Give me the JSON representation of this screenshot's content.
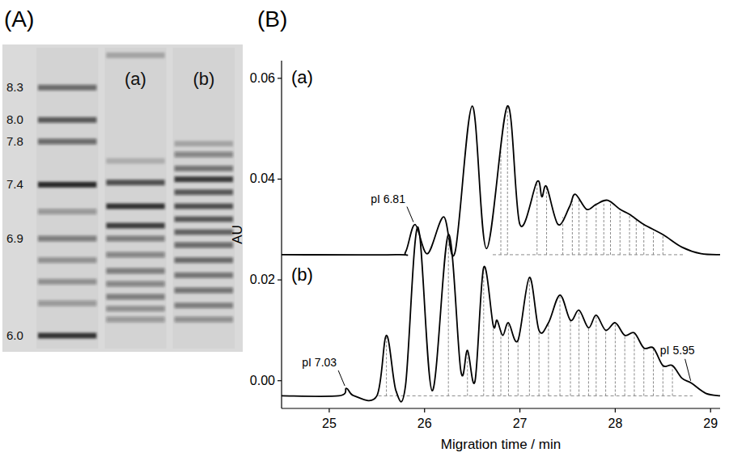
{
  "chart_data": [
    {
      "type": "gel",
      "label": "(A)",
      "ylim": [
        5.85,
        8.7
      ],
      "yticks": [
        8.3,
        {
          "value": 8,
          "label": "8.0"
        },
        7.8,
        7.4,
        6.9,
        {
          "value": 6,
          "label": "6.0"
        }
      ],
      "lanes": [
        {
          "bands": [
            8.3,
            8.0,
            7.8,
            7.4,
            7.15,
            6.9,
            6.7,
            6.5,
            6.3,
            6.0
          ],
          "intensity": [
            0.6,
            0.7,
            0.6,
            1.0,
            0.35,
            0.5,
            0.4,
            0.4,
            0.35,
            0.95
          ]
        },
        {
          "name": "(a)",
          "bands": [
            8.6,
            7.62,
            7.42,
            7.2,
            7.02,
            6.9,
            6.75,
            6.6,
            6.48,
            6.36,
            6.25,
            6.15
          ],
          "intensity": [
            0.25,
            0.2,
            0.75,
            0.95,
            0.85,
            0.5,
            0.45,
            0.5,
            0.45,
            0.5,
            0.4,
            0.35
          ]
        },
        {
          "name": "(b)",
          "bands": [
            7.78,
            7.68,
            7.55,
            7.45,
            7.33,
            7.2,
            7.08,
            6.96,
            6.84,
            6.7,
            6.56,
            6.42,
            6.28,
            6.15
          ],
          "intensity": [
            0.25,
            0.45,
            0.55,
            0.9,
            0.7,
            0.75,
            0.7,
            0.65,
            0.6,
            0.6,
            0.55,
            0.55,
            0.5,
            0.4
          ]
        }
      ]
    },
    {
      "type": "line",
      "label": "(B)",
      "x_label": "Migration time / min",
      "y_label": "AU",
      "xlim": [
        24.5,
        29.1
      ],
      "ylim": [
        -0.0055,
        0.0635
      ],
      "xticks": [
        25,
        26,
        27,
        28,
        29
      ],
      "yticks": [
        {
          "value": 0,
          "label": "0.00"
        },
        0.02,
        0.04,
        0.06
      ],
      "series": [
        {
          "name": "(a)",
          "color": "#000000",
          "line_style": "solid",
          "x": [
            24.5,
            25.7,
            25.8,
            25.9,
            26.03,
            26.2,
            26.32,
            26.5,
            26.65,
            26.87,
            27.0,
            27.18,
            27.23,
            27.28,
            27.4,
            27.52,
            27.58,
            27.7,
            27.8,
            27.92,
            28.05,
            28.15,
            28.3,
            28.5,
            28.7,
            28.9,
            29.1
          ],
          "values": [
            0.025,
            0.025,
            0.0255,
            0.031,
            0.0252,
            0.0325,
            0.0255,
            0.0545,
            0.0262,
            0.0545,
            0.031,
            0.0395,
            0.0365,
            0.0385,
            0.031,
            0.0345,
            0.037,
            0.034,
            0.035,
            0.0358,
            0.034,
            0.033,
            0.031,
            0.029,
            0.0265,
            0.0252,
            0.025
          ],
          "baseline": 0.025,
          "peaks": [
            26.8,
            26.87,
            27.18,
            27.28,
            27.45,
            27.55,
            27.62,
            27.7,
            27.8,
            27.88,
            27.95,
            28.05,
            28.15,
            28.22,
            28.3,
            28.4,
            28.5
          ]
        },
        {
          "name": "(b)",
          "color": "#000000",
          "line_style": "solid",
          "x": [
            24.5,
            25.1,
            25.18,
            25.26,
            25.5,
            25.6,
            25.7,
            25.8,
            25.93,
            26.08,
            26.25,
            26.38,
            26.45,
            26.53,
            26.62,
            26.72,
            26.76,
            26.82,
            26.88,
            26.98,
            27.1,
            27.2,
            27.3,
            27.42,
            27.53,
            27.62,
            27.72,
            27.8,
            27.9,
            28.0,
            28.1,
            28.2,
            28.3,
            28.4,
            28.5,
            28.6,
            28.7,
            28.8,
            28.95,
            29.1
          ],
          "values": [
            -0.003,
            -0.003,
            -0.0015,
            -0.003,
            -0.003,
            0.009,
            -0.002,
            -0.001,
            0.0305,
            -0.002,
            0.029,
            0.002,
            0.006,
            0,
            0.0225,
            0.011,
            0.012,
            0.009,
            0.0115,
            0.008,
            0.0205,
            0.01,
            0.0115,
            0.017,
            0.012,
            0.014,
            0.0105,
            0.013,
            0.01,
            0.0115,
            0.009,
            0.0095,
            0.0065,
            0.0065,
            0.003,
            0.003,
            0.0005,
            -0.0005,
            -0.0025,
            -0.003
          ],
          "baseline": -0.003,
          "peaks": [
            25.6,
            26.25,
            26.45,
            26.62,
            26.72,
            26.8,
            26.88,
            26.98,
            27.1,
            27.2,
            27.3,
            27.42,
            27.53,
            27.62,
            27.72,
            27.8,
            27.9,
            28.0,
            28.1,
            28.2,
            28.3,
            28.4,
            28.5,
            28.6
          ]
        }
      ],
      "annotations": [
        {
          "text": "pI 6.81",
          "x": 25.9,
          "y": 0.031
        },
        {
          "text": "pI 7.03",
          "x": 25.18,
          "y": -0.0015
        },
        {
          "text": "pI 5.95",
          "x": 28.8,
          "y": -0.0005
        }
      ]
    }
  ]
}
